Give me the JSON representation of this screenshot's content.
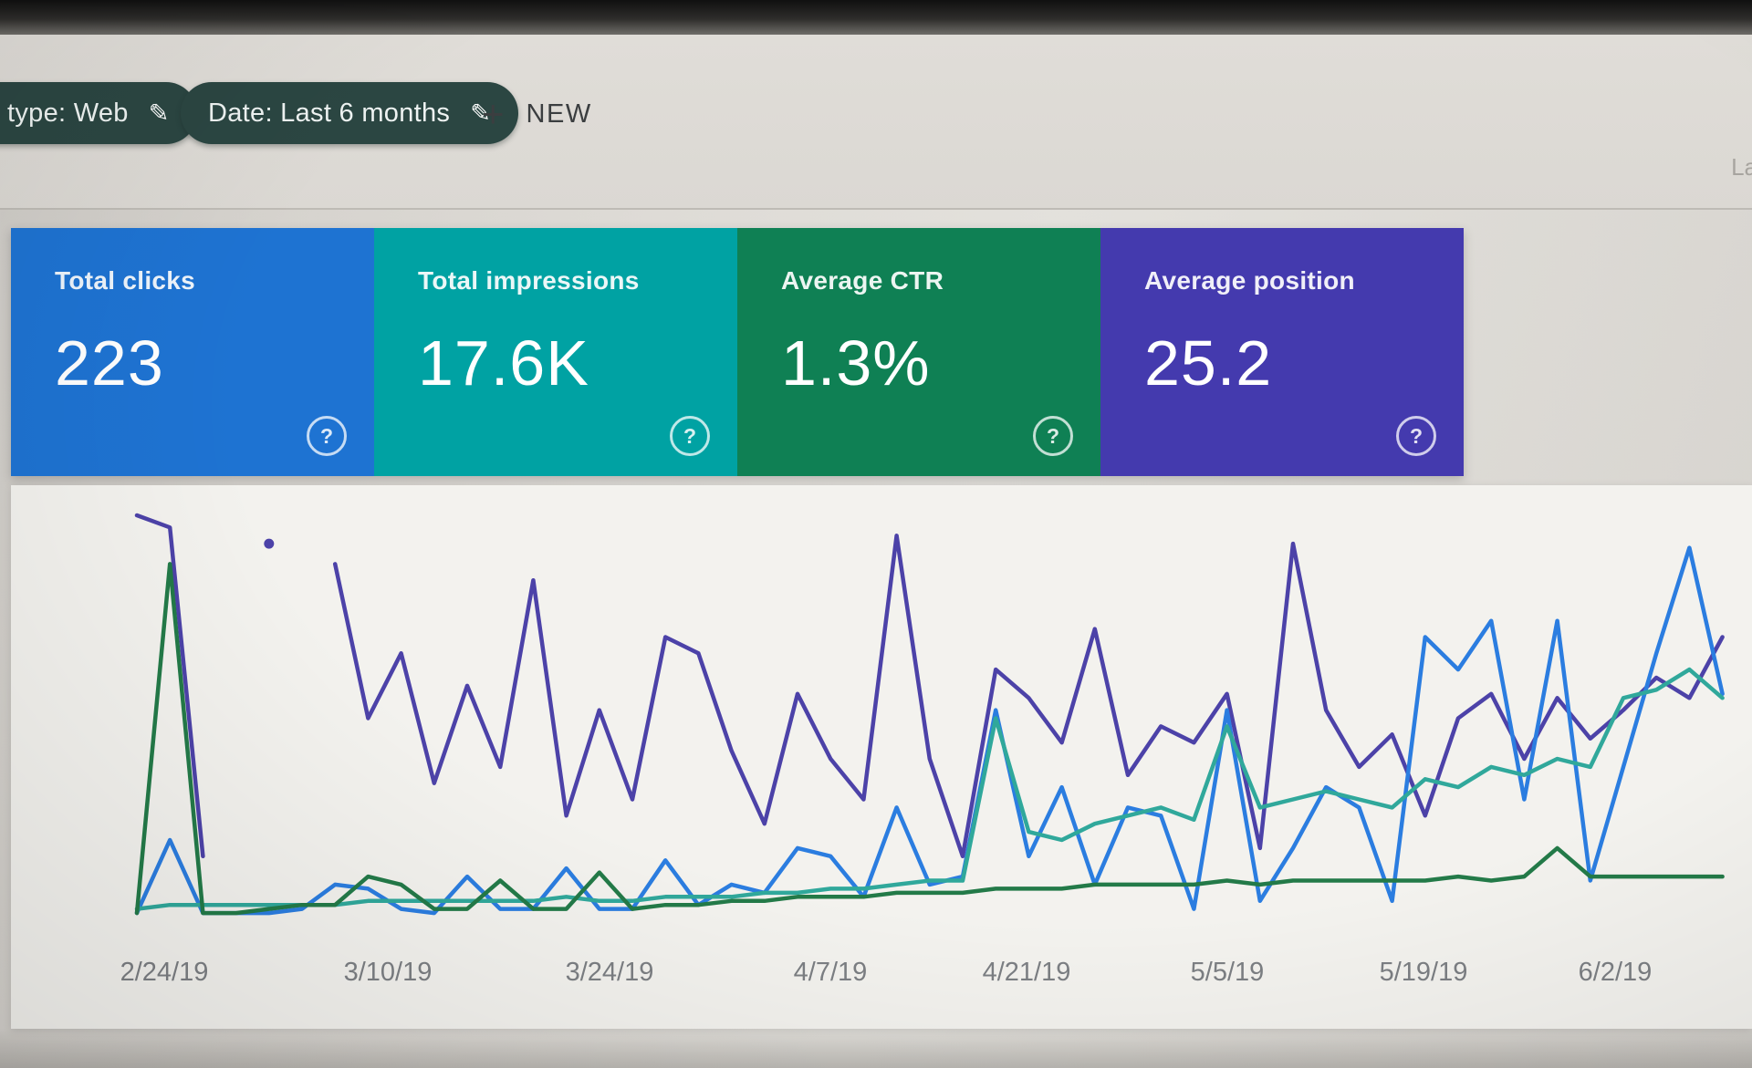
{
  "toolbar": {
    "chips": [
      {
        "label": "type: Web",
        "edit_icon": "pencil"
      },
      {
        "label": "Date: Last 6 months",
        "edit_icon": "pencil"
      }
    ],
    "new_button": {
      "plus_glyph": "+",
      "label": "NEW"
    },
    "partial_text_right": "La"
  },
  "cards": {
    "help_glyph": "?",
    "items": [
      {
        "label": "Total clicks",
        "value": "223",
        "color": "#1e73d2"
      },
      {
        "label": "Total impressions",
        "value": "17.6K",
        "color": "#00a2a3"
      },
      {
        "label": "Average CTR",
        "value": "1.3%",
        "color": "#0f8054"
      },
      {
        "label": "Average position",
        "value": "25.2",
        "color": "#443aae"
      }
    ]
  },
  "chart_data": {
    "type": "line",
    "title": "",
    "xlabel": "",
    "ylabel": "",
    "grid": false,
    "legend_position": "none (metric cards act as legend)",
    "y_scale": "normalized 0-100 of plot height (no y-axis shown in screenshot)",
    "x_tick_labels": [
      "2/24/19",
      "3/10/19",
      "3/24/19",
      "4/7/19",
      "4/21/19",
      "5/5/19",
      "5/19/19",
      "6/2/19"
    ],
    "series": [
      {
        "name": "Total impressions",
        "color": "#4c42a8",
        "values": [
          100,
          97,
          16,
          null,
          93,
          null,
          88,
          50,
          66,
          34,
          58,
          38,
          84,
          26,
          52,
          30,
          70,
          66,
          42,
          24,
          56,
          40,
          30,
          95,
          40,
          16,
          62,
          55,
          44,
          72,
          36,
          48,
          44,
          56,
          18,
          93,
          52,
          38,
          46,
          26,
          50,
          56,
          40,
          55,
          45,
          52,
          60,
          55,
          70
        ]
      },
      {
        "name": "Total clicks",
        "color": "#2b7de0",
        "values": [
          2,
          20,
          2,
          2,
          2,
          3,
          9,
          8,
          3,
          2,
          11,
          3,
          3,
          13,
          3,
          3,
          15,
          4,
          9,
          7,
          18,
          16,
          6,
          28,
          9,
          11,
          52,
          16,
          33,
          9,
          28,
          26,
          3,
          52,
          5,
          18,
          33,
          28,
          5,
          70,
          62,
          74,
          30,
          74,
          10,
          38,
          66,
          92,
          56
        ]
      },
      {
        "name": "Average position",
        "color": "#30a89b",
        "values": [
          3,
          4,
          4,
          4,
          4,
          4,
          4,
          5,
          5,
          5,
          5,
          5,
          5,
          6,
          5,
          5,
          6,
          6,
          6,
          7,
          7,
          8,
          8,
          9,
          10,
          10,
          50,
          22,
          20,
          24,
          26,
          28,
          25,
          48,
          28,
          30,
          32,
          30,
          28,
          35,
          33,
          38,
          36,
          40,
          38,
          55,
          57,
          62,
          55
        ]
      },
      {
        "name": "Average CTR",
        "color": "#237a48",
        "values": [
          2,
          88,
          2,
          2,
          3,
          4,
          4,
          11,
          9,
          3,
          3,
          10,
          3,
          3,
          12,
          3,
          4,
          4,
          5,
          5,
          6,
          6,
          6,
          7,
          7,
          7,
          8,
          8,
          8,
          9,
          9,
          9,
          9,
          10,
          9,
          10,
          10,
          10,
          10,
          10,
          11,
          10,
          11,
          18,
          11,
          11,
          11,
          11,
          11
        ]
      }
    ]
  }
}
